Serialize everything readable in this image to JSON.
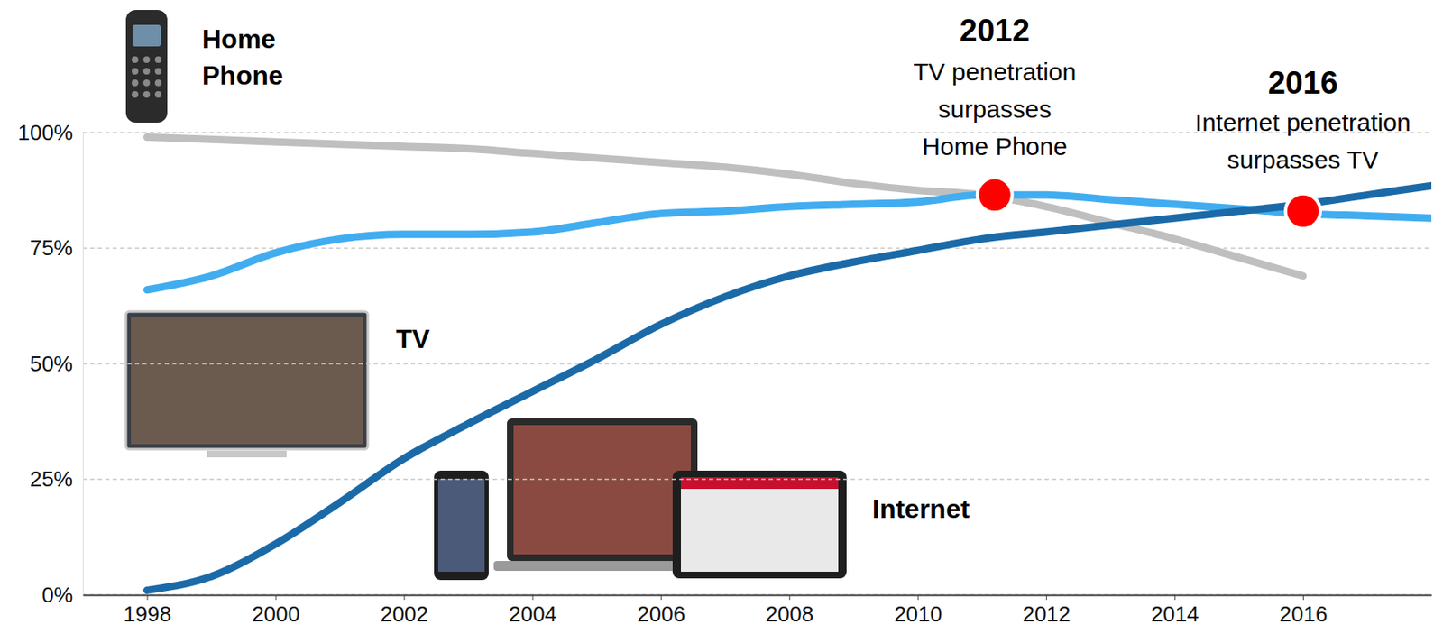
{
  "chart_data": {
    "type": "line",
    "x": [
      1998,
      1999,
      2000,
      2001,
      2002,
      2003,
      2004,
      2005,
      2006,
      2007,
      2008,
      2009,
      2010,
      2011,
      2012,
      2013,
      2014,
      2015,
      2016,
      2017,
      2018
    ],
    "xlim": [
      1997,
      2018
    ],
    "xticks": [
      1998,
      2000,
      2002,
      2004,
      2006,
      2008,
      2010,
      2012,
      2014,
      2016
    ],
    "ylim": [
      0,
      100
    ],
    "yticks": [
      {
        "value": 0,
        "label": "0%"
      },
      {
        "value": 25,
        "label": "25%"
      },
      {
        "value": 50,
        "label": "50%"
      },
      {
        "value": 75,
        "label": "75%"
      },
      {
        "value": 100,
        "label": "100%"
      }
    ],
    "grid": true,
    "series": [
      {
        "name": "Home Phone",
        "color": "#bfbfbf",
        "values": [
          99,
          98.5,
          98,
          97.5,
          97,
          96.5,
          95.5,
          94.5,
          93.5,
          92.5,
          91,
          89,
          87.5,
          86.5,
          84,
          80.5,
          77,
          73,
          69,
          null,
          null
        ]
      },
      {
        "name": "TV",
        "color": "#41adf0",
        "values": [
          66,
          69,
          74,
          77,
          78,
          78,
          78.5,
          80.5,
          82.5,
          83,
          84,
          84.5,
          85,
          86.5,
          86.5,
          85.5,
          84.5,
          83.5,
          82.5,
          82,
          81.5
        ]
      },
      {
        "name": "Internet",
        "color": "#1b6aa8",
        "values": [
          1,
          4,
          11,
          20,
          29.5,
          37,
          44,
          51,
          58.5,
          64.5,
          69,
          72,
          74.5,
          77,
          78.5,
          80,
          81.5,
          83,
          84.5,
          86.5,
          88.5
        ]
      }
    ],
    "annotations": [
      {
        "label": "2012",
        "text": [
          "TV penetration",
          "surpasses",
          "Home Phone"
        ],
        "x": 2011.2,
        "y": 86.5,
        "color": "#ff0000"
      },
      {
        "label": "2016",
        "text": [
          "Internet penetration",
          "surpasses TV"
        ],
        "x": 2016,
        "y": 83,
        "color": "#ff0000"
      }
    ]
  }
}
